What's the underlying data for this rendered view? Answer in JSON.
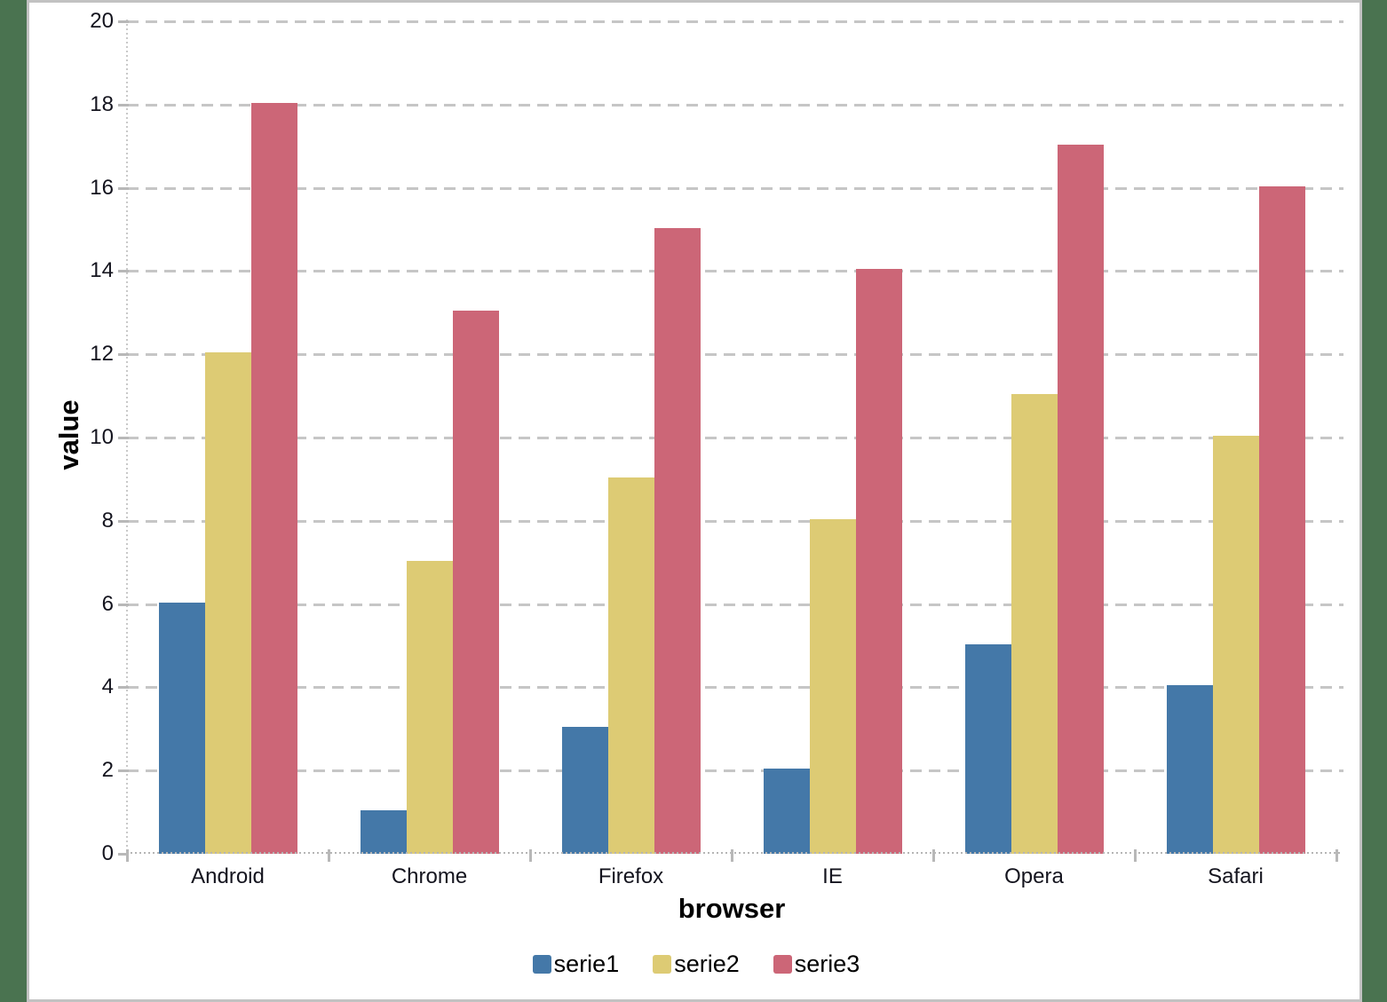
{
  "chart_data": {
    "type": "bar",
    "title": "",
    "xlabel": "browser",
    "ylabel": "value",
    "categories": [
      "Android",
      "Chrome",
      "Firefox",
      "IE",
      "Opera",
      "Safari"
    ],
    "series": [
      {
        "name": "serie1",
        "color": "#4478a8",
        "values": [
          6,
          1,
          3,
          2,
          5,
          4
        ]
      },
      {
        "name": "serie2",
        "color": "#ddcb74",
        "values": [
          12,
          7,
          9,
          8,
          11,
          10
        ]
      },
      {
        "name": "serie3",
        "color": "#cc6677",
        "values": [
          18,
          13,
          15,
          14,
          17,
          16
        ]
      }
    ],
    "ylim": [
      0,
      20
    ],
    "yticks": [
      0,
      2,
      4,
      6,
      8,
      10,
      12,
      14,
      16,
      18,
      20
    ],
    "grid": "horizontal-dashed",
    "legend_position": "bottom"
  },
  "colors": {
    "page_background": "#4a7350",
    "canvas_background": "#ffffff",
    "canvas_border": "#c2c2c2",
    "gridline": "#c6c6c6",
    "tick": "#b8b8b8",
    "tick_label_text": "#14141e",
    "axis_title_text": "#000000",
    "serie1": "#4478a8",
    "serie2": "#ddcb74",
    "serie3": "#cc6677"
  }
}
